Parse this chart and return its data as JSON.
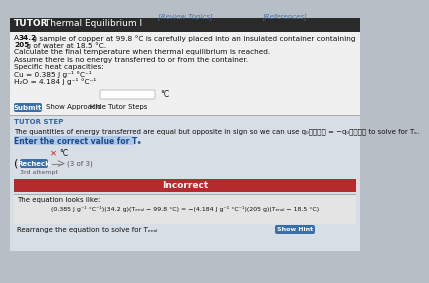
{
  "top_links_left": "[Review Topics]",
  "top_links_right": "[References]",
  "title_bold": "TUTOR",
  "title_rest": " Thermal Equilibrium I",
  "line1a": "A ",
  "line1b": "34.2",
  "line1c": " g sample of copper at 99.8 °C is carefully placed into an insulated container containing ",
  "line1d": "205",
  "line1e": " g of water at 18.5 °C.",
  "line2": "Calculate the final temperature when thermal equilibrium is reached.",
  "line3": "Assume there is no energy transferred to or from the container.",
  "line4": "Specific heat capacities:",
  "line5": "Cu = 0.385 J g⁻¹ °C⁻¹",
  "line6": "H₂O = 4.184 J g⁻¹ °C⁻¹",
  "input_unit": "°C",
  "btn_submit": "Submit",
  "btn_approach": "Show Approach",
  "btn_tutor": "Hide Tutor Steps",
  "tutor_step_label": "TUTOR STEP",
  "tutor_step_line1": "The quantities of energy transferred are equal but opposite in sign so we can use q₀ⲝⲝⲝⲝ = −q₀ⲝⲝⲝⲝ to solve for Tₑ.",
  "enter_text": "Enter the correct value for Tₑ",
  "x_mark": "✕",
  "input_unit2": "°C",
  "left_arrow": "(",
  "recheck_btn": "Recheck",
  "arrow_nav": "—► (3 of 3)",
  "attempt_label": "3rd attempt",
  "incorrect_label": "Incorrect",
  "equation_label": "The equation looks like:",
  "equation": "(0.385 J g⁻¹ °C⁻¹)(34.2 g)(Tₑₙₐₗ − 99.8 °C) = −(4.184 J g⁻¹ °C⁻¹)(205 g)(Tₑₙₐₗ − 18.5 °C)",
  "hint_text": "Rearrange the equation to solve for Tₑₙₐₗ",
  "show_hint_btn": "Show Hint",
  "bg_color": "#b8bec6",
  "white_panel_color": "#f0f0f0",
  "tutor_panel_color": "#d8dee5",
  "incorrect_bg": "#b52a2a",
  "btn_blue": "#3a6ea8",
  "hint_btn_blue": "#3a6ea8",
  "text_dark": "#111111",
  "text_link": "#1a5fa8",
  "x_color": "#cc2222",
  "text_gray": "#555555",
  "eq_bg": "#e8e8e8"
}
